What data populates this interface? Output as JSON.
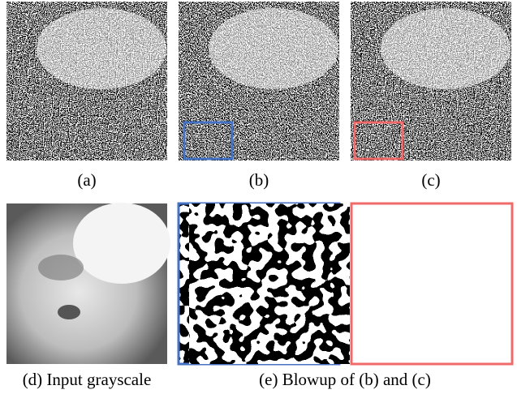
{
  "figure": {
    "captions": [
      "(a)",
      "(b)",
      "(c)",
      "(d) Input grayscale",
      "(e) Blowup of (b) and (c)"
    ]
  }
}
